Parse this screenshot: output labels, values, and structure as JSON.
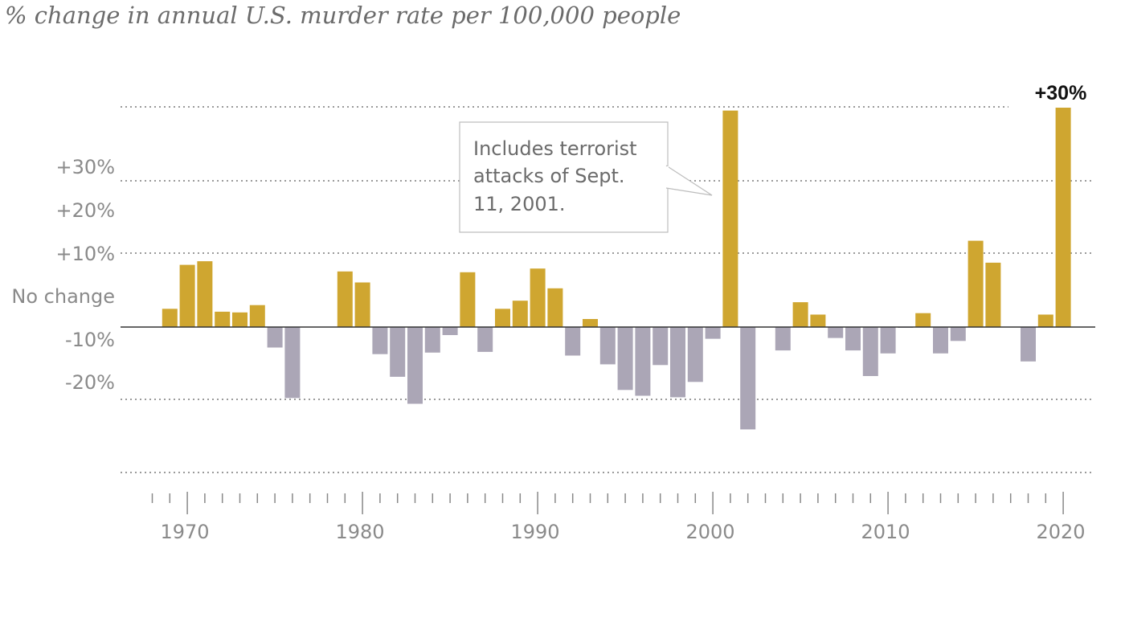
{
  "subtitle": "% change in annual U.S. murder rate per 100,000 people",
  "colors": {
    "positive": "#cfa630",
    "negative": "#aba6b6",
    "gridline": "#9a9a9a",
    "axis": "#333333",
    "tick": "#888888",
    "label": "#8a8a8a"
  },
  "chart_data": {
    "type": "bar",
    "title": "% change in annual U.S. murder rate per 100,000 people",
    "xlabel": "",
    "ylabel": "",
    "ylim": [
      -20,
      30
    ],
    "x_tick_labels": [
      "1970",
      "1980",
      "1990",
      "2000",
      "2010",
      "2020"
    ],
    "y_tick_labels": [
      {
        "label": "+30%"
      },
      {
        "label": "+20%"
      },
      {
        "label": "+10%"
      },
      {
        "label": "No change"
      },
      {
        "label": "-10%"
      },
      {
        "label": "-20%"
      }
    ],
    "categories": [
      1969,
      1970,
      1971,
      1972,
      1973,
      1974,
      1975,
      1976,
      1977,
      1978,
      1979,
      1980,
      1981,
      1982,
      1983,
      1984,
      1985,
      1986,
      1987,
      1988,
      1989,
      1990,
      1991,
      1992,
      1993,
      1994,
      1995,
      1996,
      1997,
      1998,
      1999,
      2000,
      2001,
      2002,
      2003,
      2004,
      2005,
      2006,
      2007,
      2008,
      2009,
      2010,
      2011,
      2012,
      2013,
      2014,
      2015,
      2016,
      2017,
      2018,
      2019,
      2020
    ],
    "values": [
      2.5,
      8.5,
      9.0,
      2.1,
      2.0,
      3.0,
      -2.8,
      -9.7,
      0,
      0,
      7.6,
      6.1,
      -3.7,
      -6.8,
      -10.5,
      -3.5,
      -1.1,
      7.5,
      -3.4,
      2.5,
      3.6,
      8.0,
      5.3,
      -3.9,
      1.1,
      -5.1,
      -8.6,
      -9.4,
      -5.2,
      -9.6,
      -7.5,
      -1.6,
      29.6,
      -14.0,
      0,
      -3.2,
      3.4,
      1.7,
      -1.5,
      -3.2,
      -6.7,
      -3.6,
      -0.1,
      1.9,
      -3.6,
      -1.9,
      11.8,
      8.8,
      0,
      -4.7,
      1.7,
      30.0
    ],
    "annotations": [
      {
        "text": "Includes terrorist attacks of Sept. 11, 2001.",
        "lines": [
          "Includes terrorist",
          "attacks of Sept.",
          "11, 2001."
        ],
        "year": 2001
      },
      {
        "text": "+30%",
        "year": 2020
      }
    ]
  }
}
